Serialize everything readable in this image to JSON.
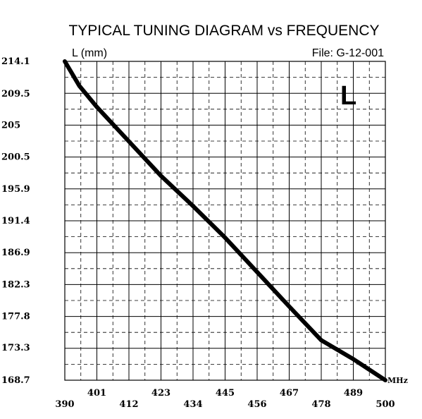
{
  "chart_data": {
    "type": "line",
    "title": "TYPICAL TUNING DIAGRAM vs FREQUENCY",
    "ylabel": "L (mm)",
    "file_label": "File:  G-12-001",
    "corner_mark": "L",
    "x_unit": "MHz",
    "xlim": [
      390,
      500
    ],
    "ylim": [
      168.7,
      214.1
    ],
    "x_ticks_lower": [
      "390",
      "412",
      "434",
      "456",
      "478",
      "500"
    ],
    "x_ticks_upper": [
      "401",
      "423",
      "445",
      "467",
      "489"
    ],
    "y_ticks": [
      "214.1",
      "209.5",
      "205",
      "200.5",
      "195.9",
      "191.4",
      "186.9",
      "182.3",
      "177.8",
      "173.3",
      "168.7"
    ],
    "grid": true,
    "series": [
      {
        "x": [
          390,
          395,
          401,
          412,
          423,
          434,
          445,
          456,
          467,
          478,
          489,
          500
        ],
        "y": [
          214.1,
          210.6,
          207.6,
          202.7,
          197.8,
          193.5,
          189.0,
          184.1,
          179.2,
          174.4,
          171.7,
          168.7
        ]
      }
    ]
  }
}
